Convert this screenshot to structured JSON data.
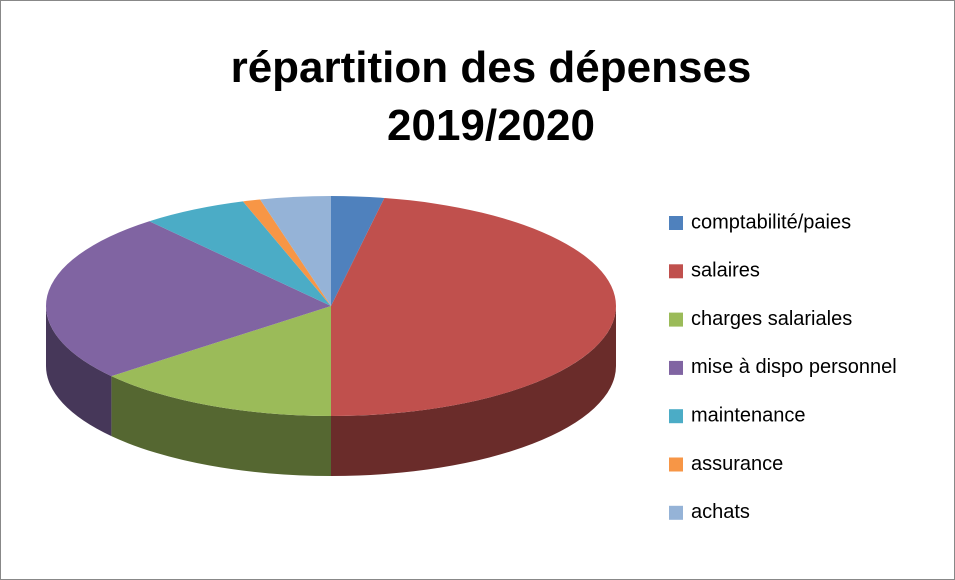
{
  "chart_data": {
    "type": "pie",
    "title": "répartition des dépenses 2019/2020",
    "categories": [
      "comptabilité/paies",
      "salaires",
      "charges salariales",
      "mise à dispo personnel",
      "maintenance",
      "assurance",
      "achats"
    ],
    "values": [
      3,
      47,
      14,
      25,
      6,
      1,
      4
    ],
    "colors": [
      "#4f81bd",
      "#c0504d",
      "#9bbb59",
      "#8064a2",
      "#4bacc6",
      "#f79646",
      "#95b3d7"
    ],
    "legend": "right"
  }
}
